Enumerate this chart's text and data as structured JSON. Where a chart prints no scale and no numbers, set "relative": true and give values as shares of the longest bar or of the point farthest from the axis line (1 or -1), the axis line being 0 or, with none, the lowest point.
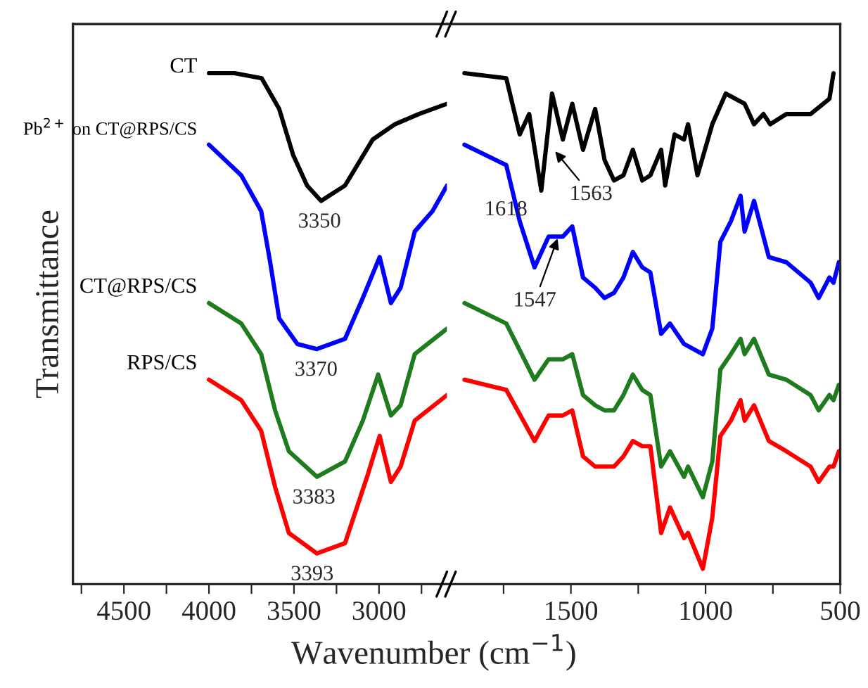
{
  "chart_data": [
    {
      "type": "line",
      "relative": true,
      "ylabel": "Transmittance",
      "xlabel": "Wavenumber (cm$^{−1}$)",
      "xlim": [
        4800,
        2600
      ],
      "xticks": [
        {
          "value": 4750,
          "label": null
        },
        4500,
        {
          "value": 4250,
          "label": null
        },
        4000,
        {
          "value": 3750,
          "label": null
        },
        3500,
        {
          "value": 3250,
          "label": null
        },
        3000,
        {
          "value": 2750,
          "label": null
        }
      ],
      "tick_labels": "x",
      "grid": false,
      "legend": false,
      "annotations": [
        {
          "text": "3350",
          "x": 3350,
          "y": 0.75
        },
        {
          "text": "3370",
          "x": 3370,
          "y": 0.46
        },
        {
          "text": "3383",
          "x": 3383,
          "y": 0.21
        },
        {
          "text": "3393",
          "x": 3393,
          "y": 0.06
        }
      ],
      "series": [
        {
          "name": "CT",
          "color": "#000000",
          "x": [
            4000,
            3850,
            3690,
            3587,
            3505,
            3423,
            3341,
            3200,
            3037,
            2906,
            2766,
            2600
          ],
          "values": [
            1.0,
            1.0,
            0.99,
            0.93,
            0.84,
            0.78,
            0.75,
            0.78,
            0.87,
            0.9,
            0.92,
            0.94
          ]
        },
        {
          "name": "Pb$^{2+}$ on CT@RPS/CS",
          "color": "#0000ff",
          "x": [
            4000,
            3810,
            3693,
            3640,
            3587,
            3480,
            3365,
            3200,
            3095,
            2996,
            2930,
            2873,
            2790,
            2685,
            2600
          ],
          "values": [
            0.86,
            0.8,
            0.73,
            0.63,
            0.52,
            0.47,
            0.46,
            0.48,
            0.56,
            0.64,
            0.55,
            0.58,
            0.69,
            0.73,
            0.78
          ]
        },
        {
          "name": "CT@RPS/CS",
          "color": "#1e7b1e",
          "x": [
            4000,
            3810,
            3693,
            3611,
            3530,
            3365,
            3200,
            3095,
            3005,
            2930,
            2873,
            2790,
            2600
          ],
          "values": [
            0.55,
            0.51,
            0.45,
            0.34,
            0.26,
            0.21,
            0.24,
            0.32,
            0.41,
            0.33,
            0.35,
            0.45,
            0.5
          ]
        },
        {
          "name": "RPS/CS",
          "color": "#ff0000",
          "x": [
            4000,
            3810,
            3693,
            3611,
            3530,
            3365,
            3200,
            3070,
            2996,
            2930,
            2873,
            2790,
            2600
          ],
          "values": [
            0.4,
            0.36,
            0.3,
            0.19,
            0.1,
            0.06,
            0.08,
            0.21,
            0.29,
            0.2,
            0.23,
            0.32,
            0.37
          ]
        }
      ]
    },
    {
      "type": "line",
      "relative": true,
      "xlim": [
        1960,
        500
      ],
      "xticks": [
        {
          "value": 1750,
          "label": null
        },
        1500,
        {
          "value": 1250,
          "label": null
        },
        1000,
        {
          "value": 750,
          "label": null
        },
        500
      ],
      "tick_labels": "x",
      "grid": false,
      "legend": false,
      "annotations": [
        {
          "text": "1618",
          "x": 1618,
          "y": 0.77
        },
        {
          "text": "1563",
          "x": 1563,
          "y": 0.85
        },
        {
          "text": "1547",
          "x": 1547,
          "y": 0.68
        }
      ],
      "series": [
        {
          "color": "#000000",
          "x": [
            1895,
            1740,
            1690,
            1655,
            1610,
            1570,
            1530,
            1495,
            1455,
            1410,
            1375,
            1340,
            1305,
            1270,
            1235,
            1205,
            1165,
            1150,
            1115,
            1080,
            1065,
            1030,
            975,
            925,
            855,
            820,
            785,
            760,
            700,
            610,
            540,
            525
          ],
          "values": [
            1.0,
            0.99,
            0.88,
            0.92,
            0.77,
            0.96,
            0.87,
            0.94,
            0.85,
            0.93,
            0.83,
            0.79,
            0.8,
            0.85,
            0.79,
            0.8,
            0.85,
            0.78,
            0.88,
            0.87,
            0.9,
            0.8,
            0.9,
            0.96,
            0.94,
            0.9,
            0.92,
            0.9,
            0.92,
            0.92,
            0.95,
            1.0
          ]
        },
        {
          "color": "#0000ff",
          "x": [
            1895,
            1740,
            1690,
            1635,
            1583,
            1530,
            1495,
            1455,
            1410,
            1375,
            1340,
            1305,
            1270,
            1235,
            1205,
            1165,
            1132,
            1080,
            1010,
            975,
            945,
            906,
            870,
            855,
            820,
            765,
            700,
            610,
            580,
            540,
            525,
            505
          ],
          "values": [
            0.86,
            0.82,
            0.71,
            0.62,
            0.68,
            0.68,
            0.7,
            0.6,
            0.58,
            0.56,
            0.57,
            0.6,
            0.65,
            0.62,
            0.61,
            0.49,
            0.51,
            0.47,
            0.45,
            0.5,
            0.67,
            0.71,
            0.76,
            0.69,
            0.75,
            0.64,
            0.63,
            0.59,
            0.56,
            0.6,
            0.59,
            0.63
          ]
        },
        {
          "color": "#1e7b1e",
          "x": [
            1895,
            1740,
            1635,
            1583,
            1530,
            1495,
            1455,
            1410,
            1375,
            1340,
            1305,
            1270,
            1235,
            1205,
            1165,
            1132,
            1080,
            1065,
            1010,
            975,
            945,
            906,
            870,
            855,
            820,
            765,
            700,
            610,
            580,
            540,
            525,
            505
          ],
          "values": [
            0.55,
            0.51,
            0.4,
            0.44,
            0.44,
            0.45,
            0.37,
            0.35,
            0.34,
            0.34,
            0.37,
            0.41,
            0.38,
            0.37,
            0.23,
            0.26,
            0.21,
            0.23,
            0.17,
            0.24,
            0.42,
            0.45,
            0.48,
            0.45,
            0.48,
            0.41,
            0.4,
            0.37,
            0.34,
            0.37,
            0.36,
            0.39
          ]
        },
        {
          "color": "#ff0000",
          "x": [
            1895,
            1740,
            1635,
            1583,
            1530,
            1495,
            1455,
            1410,
            1375,
            1340,
            1305,
            1270,
            1235,
            1205,
            1165,
            1132,
            1080,
            1065,
            1010,
            975,
            945,
            906,
            870,
            855,
            820,
            765,
            700,
            610,
            580,
            540,
            525,
            505
          ],
          "values": [
            0.4,
            0.38,
            0.28,
            0.33,
            0.33,
            0.34,
            0.25,
            0.23,
            0.23,
            0.23,
            0.25,
            0.28,
            0.27,
            0.27,
            0.1,
            0.15,
            0.09,
            0.1,
            0.03,
            0.13,
            0.29,
            0.32,
            0.36,
            0.32,
            0.35,
            0.28,
            0.26,
            0.23,
            0.2,
            0.23,
            0.23,
            0.26
          ]
        }
      ]
    }
  ]
}
